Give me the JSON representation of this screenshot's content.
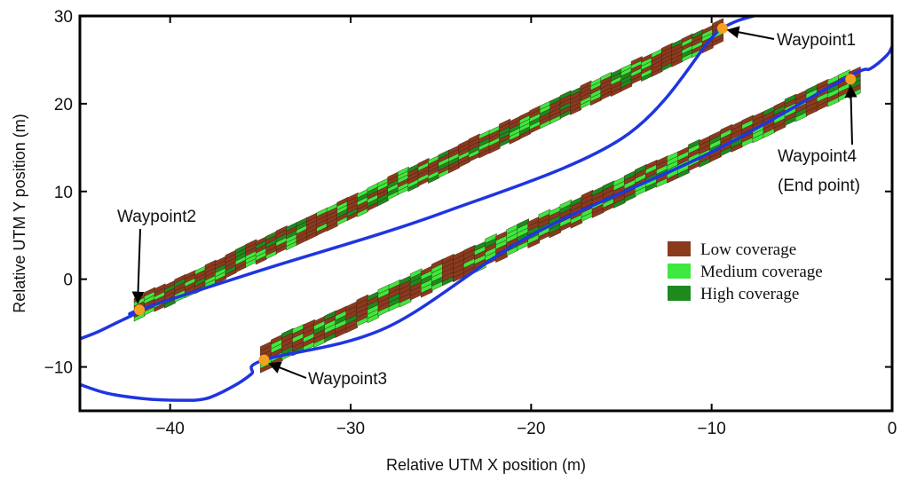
{
  "chart_data": {
    "type": "scatter",
    "title": "",
    "xlabel": "Relative UTM X position (m)",
    "ylabel": "Relative UTM Y position (m)",
    "xlim": [
      -45,
      0
    ],
    "ylim": [
      -15,
      30
    ],
    "x_ticks": [
      -40,
      -30,
      -20,
      -10,
      0
    ],
    "y_ticks": [
      -10,
      0,
      10,
      20,
      30
    ],
    "x_tick_labels": [
      "−40",
      "−30",
      "−20",
      "−10",
      "0"
    ],
    "y_tick_labels": [
      "−10",
      "0",
      "10",
      "20",
      "30"
    ],
    "grid": false,
    "legend_position": "right-center",
    "legend": [
      {
        "name": "Low coverage",
        "color": "#8b3a1e"
      },
      {
        "name": "Medium coverage",
        "color": "#3ee83e"
      },
      {
        "name": "High coverage",
        "color": "#1e8a1e"
      }
    ],
    "trajectory": {
      "color": "#1f35e0",
      "points": [
        [
          -45,
          -6.8
        ],
        [
          -44,
          -6.0
        ],
        [
          -43,
          -5.0
        ],
        [
          -42,
          -4.0
        ],
        [
          -41.7,
          -3.5
        ],
        [
          -35,
          1.0
        ],
        [
          -25,
          7.5
        ],
        [
          -15,
          16.0
        ],
        [
          -10,
          27.5
        ],
        [
          -9.4,
          28.6
        ],
        [
          -8.5,
          29.5
        ],
        [
          -7.5,
          30.1
        ]
      ],
      "points_lower": [
        [
          -45,
          -12.0
        ],
        [
          -43.5,
          -13.0
        ],
        [
          -41.5,
          -13.6
        ],
        [
          -39.5,
          -13.8
        ],
        [
          -38,
          -13.6
        ],
        [
          -36.5,
          -12.2
        ],
        [
          -35.5,
          -10.8
        ],
        [
          -34.8,
          -9.2
        ],
        [
          -28,
          -5.5
        ],
        [
          -20,
          5.0
        ],
        [
          -10,
          14.5
        ],
        [
          -2.5,
          23.0
        ],
        [
          -1.2,
          24.0
        ],
        [
          -0.3,
          25.5
        ],
        [
          0,
          26.5
        ]
      ]
    },
    "waypoints": [
      {
        "label": "Waypoint1",
        "x": -9.4,
        "y": 28.6
      },
      {
        "label": "Waypoint2",
        "x": -41.7,
        "y": -3.5
      },
      {
        "label": "Waypoint3",
        "x": -34.8,
        "y": -9.2
      },
      {
        "label": "Waypoint4",
        "label2": "(End point)",
        "x": -2.3,
        "y": 22.8
      }
    ],
    "strips": [
      {
        "name": "upper strip",
        "from": [
          -42,
          -3.5
        ],
        "to": [
          -9.4,
          28.3
        ],
        "half_width_y": 1.3,
        "segments": 58
      },
      {
        "name": "lower strip",
        "from": [
          -35,
          -9.0
        ],
        "to": [
          -1.8,
          22.8
        ],
        "half_width_y": 1.5,
        "segments": 56
      }
    ],
    "waypoint_color": "#f6a020"
  }
}
